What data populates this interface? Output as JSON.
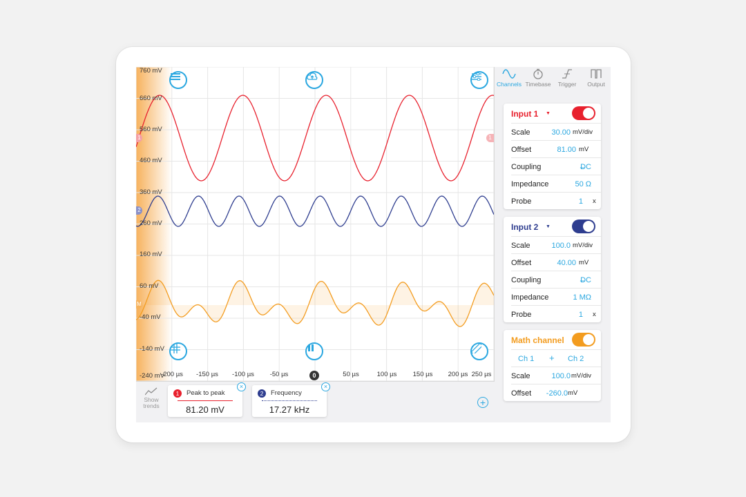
{
  "y_axis_labels": [
    "760 mV",
    "660 mV",
    "560 mV",
    "460 mV",
    "360 mV",
    "260 mV",
    "160 mV",
    "60 mV",
    "-40 mV",
    "-140 mV",
    "-240 mV"
  ],
  "x_axis_labels": [
    "-200 µs",
    "-150 µs",
    "-100 µs",
    "-50 µs",
    "50 µs",
    "100 µs",
    "150 µs",
    "200 µs",
    "250 µs"
  ],
  "trigger_marker": "0",
  "channel_markers": {
    "ch1": "1",
    "ch2": "2",
    "math": "M"
  },
  "colors": {
    "ch1": "#e8202d",
    "ch2": "#2e3d8f",
    "math": "#f39c1f",
    "accent": "#2aa7e0"
  },
  "toolbar": {
    "menu_icon": "menu-icon",
    "cloud_icon": "cloud-upload-icon",
    "settings_icon": "sliders-icon",
    "grid_icon": "grid-icon",
    "pause_icon": "pause-icon",
    "ruler_icon": "ruler-icon"
  },
  "bottom": {
    "show_trends": "Show trends",
    "measurements": [
      {
        "num": "1",
        "name": "Peak to peak",
        "value": "81.20 mV",
        "color": "#e8202d"
      },
      {
        "num": "2",
        "name": "Frequency",
        "value": "17.27 kHz",
        "color": "#2e3d8f"
      }
    ],
    "add": "+"
  },
  "tabs": [
    {
      "label": "Channels",
      "icon": "sine-wave-icon"
    },
    {
      "label": "Timebase",
      "icon": "stopwatch-icon"
    },
    {
      "label": "Trigger",
      "icon": "trigger-edge-icon"
    },
    {
      "label": "Output",
      "icon": "square-wave-icon"
    }
  ],
  "input1": {
    "title": "Input 1",
    "caret": "▼",
    "scale_label": "Scale",
    "scale_value": "30.00",
    "scale_unit": "mV/div",
    "offset_label": "Offset",
    "offset_value": "81.00",
    "offset_unit": "mV",
    "coupling_label": "Coupling",
    "coupling_value": "DC",
    "impedance_label": "Impedance",
    "impedance_value": "50 Ω",
    "probe_label": "Probe",
    "probe_value": "1",
    "probe_unit": "x"
  },
  "input2": {
    "title": "Input 2",
    "caret": "▼",
    "scale_label": "Scale",
    "scale_value": "100.0",
    "scale_unit": "mV/div",
    "offset_label": "Offset",
    "offset_value": "40.00",
    "offset_unit": "mV",
    "coupling_label": "Coupling",
    "coupling_value": "DC",
    "impedance_label": "Impedance",
    "impedance_value": "1 MΩ",
    "probe_label": "Probe",
    "probe_value": "1",
    "probe_unit": "x"
  },
  "math": {
    "title": "Math channel",
    "operand_a": "Ch 1",
    "operator": "+",
    "operand_b": "Ch 2",
    "scale_label": "Scale",
    "scale_value": "100.0",
    "scale_unit": "mV/div",
    "offset_label": "Offset",
    "offset_value": "-260.0",
    "offset_unit": "mV"
  }
}
